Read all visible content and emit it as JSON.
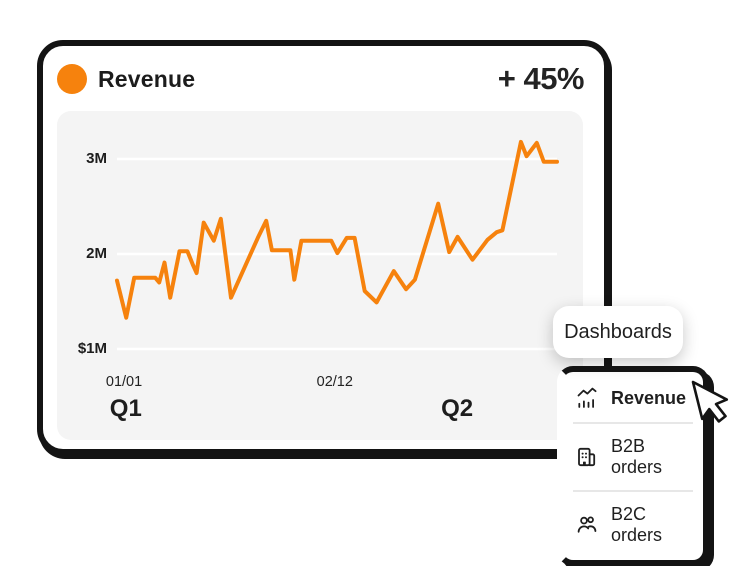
{
  "header": {
    "title": "Revenue",
    "delta": "+ 45%"
  },
  "colors": {
    "accent": "#F6820D",
    "ink": "#141414",
    "panel_bg": "#F4F4F4",
    "gridline": "#FFFFFF",
    "card_bg": "#FFFFFF",
    "divider": "#E7E7E7"
  },
  "chart_data": {
    "type": "line",
    "title": "Revenue",
    "growth_label": "+ 45%",
    "line_color": "#F6820D",
    "grid": "horizontal-only",
    "legend_position": "top-left",
    "ylim": [
      0.8,
      3.4
    ],
    "y_ticks": [
      {
        "label": "3M",
        "value": 3
      },
      {
        "label": "2M",
        "value": 2
      },
      {
        "label": "$1M",
        "value": 1
      }
    ],
    "x_ticks": [
      {
        "label": "01/01",
        "x_pct": 1.6
      },
      {
        "label": "02/12",
        "x_pct": 49.5
      }
    ],
    "quarter_labels": [
      {
        "label": "Q1",
        "x_pct": 2.0
      },
      {
        "label": "Q2",
        "x_pct": 77.3
      }
    ],
    "series": [
      {
        "name": "Revenue",
        "points_x_pct_value_millions": [
          [
            0,
            1.72
          ],
          [
            2.1,
            1.33
          ],
          [
            3.9,
            1.75
          ],
          [
            6.2,
            1.75
          ],
          [
            8.7,
            1.75
          ],
          [
            9.6,
            1.7
          ],
          [
            10.8,
            1.91
          ],
          [
            12.1,
            1.54
          ],
          [
            14.2,
            2.03
          ],
          [
            16.0,
            2.03
          ],
          [
            17.2,
            1.89
          ],
          [
            18.1,
            1.8
          ],
          [
            19.7,
            2.33
          ],
          [
            22.0,
            2.14
          ],
          [
            23.6,
            2.37
          ],
          [
            25.9,
            1.54
          ],
          [
            32.0,
            2.17
          ],
          [
            33.9,
            2.35
          ],
          [
            35.2,
            2.04
          ],
          [
            39.4,
            2.04
          ],
          [
            40.3,
            1.73
          ],
          [
            41.9,
            2.14
          ],
          [
            48.7,
            2.14
          ],
          [
            50.1,
            2.01
          ],
          [
            52.2,
            2.17
          ],
          [
            54.0,
            2.17
          ],
          [
            56.3,
            1.61
          ],
          [
            59.0,
            1.49
          ],
          [
            62.9,
            1.82
          ],
          [
            65.7,
            1.63
          ],
          [
            67.7,
            1.73
          ],
          [
            73.0,
            2.53
          ],
          [
            75.5,
            2.02
          ],
          [
            77.4,
            2.18
          ],
          [
            80.8,
            1.94
          ],
          [
            84.2,
            2.15
          ],
          [
            86.3,
            2.23
          ],
          [
            87.6,
            2.25
          ],
          [
            91.8,
            3.18
          ],
          [
            93.1,
            3.03
          ],
          [
            95.4,
            3.17
          ],
          [
            97.0,
            2.97
          ],
          [
            100,
            2.97
          ]
        ]
      }
    ]
  },
  "dropdown": {
    "trigger_label": "Dashboards",
    "items": [
      {
        "label": "Revenue",
        "icon": "chart-trend-icon",
        "selected": true
      },
      {
        "label": "B2B orders",
        "icon": "building-icon",
        "selected": false
      },
      {
        "label": "B2C orders",
        "icon": "people-icon",
        "selected": false
      }
    ]
  },
  "cursor": {
    "icon": "pointer-cursor-icon"
  }
}
